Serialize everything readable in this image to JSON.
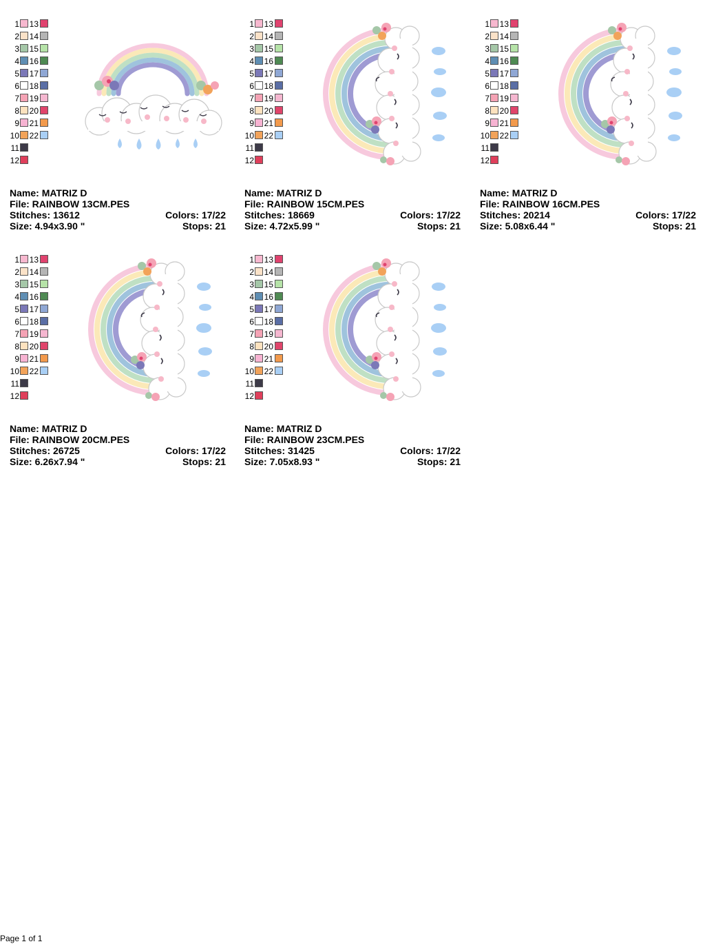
{
  "labels": {
    "name": "Name:",
    "file": "File:",
    "stitches": "Stitches:",
    "colors": "Colors:",
    "size": "Size:",
    "stops": "Stops:"
  },
  "palette_a": {
    "left": [
      "1",
      "2",
      "3",
      "4",
      "5",
      "6",
      "7",
      "8",
      "9",
      "10",
      "11",
      "12"
    ],
    "right": [
      "13",
      "14",
      "15",
      "16",
      "17",
      "18",
      "19",
      "20",
      "21",
      "22"
    ]
  },
  "colors_a": {
    "left": [
      "#f7b8cf",
      "#fbe2c8",
      "#a5c7a8",
      "#5f8eb3",
      "#7b78b7",
      "#ffffff",
      "#f5a3b5",
      "#fde2bf",
      "#f7b3d2",
      "#f2a35a",
      "#3d3a48",
      "#df3f5b"
    ],
    "right": [
      "#e0436f",
      "#b5b5b5",
      "#b6e3a8",
      "#4f8a53",
      "#8fa7d4",
      "#5a6ea5",
      "#f5b7d0",
      "#e0456b",
      "#f29a4c",
      "#a9cff5"
    ]
  },
  "colors_b": {
    "left": [
      "#f7b8cf",
      "#fbe2c8",
      "#a5c7a8",
      "#5f8eb3",
      "#7b78b7",
      "#ffffff",
      "#f5a3b5",
      "#fde2bf",
      "#f7b3d2",
      "#f2a35a",
      "#3d3a48",
      "#df3f5b"
    ],
    "right": [
      "#e0436f",
      "#b5b5b5",
      "#b6e3a8",
      "#4f8a53",
      "#8fa7d4",
      "#5a6ea5",
      "#f5b7d0",
      "#e0456b",
      "#f29a4c",
      "#a9cff5"
    ]
  },
  "designs": [
    {
      "name": "MATRIZ D",
      "file": "RAINBOW 13CM.PES",
      "stitches": "13612",
      "colors": "17/22",
      "size": "4.94x3.90 \"",
      "stops": "21"
    },
    {
      "name": "MATRIZ D",
      "file": "RAINBOW 15CM.PES",
      "stitches": "18669",
      "colors": "17/22",
      "size": "4.72x5.99 \"",
      "stops": "21"
    },
    {
      "name": "MATRIZ D",
      "file": "RAINBOW 16CM.PES",
      "stitches": "20214",
      "colors": "17/22",
      "size": "5.08x6.44 \"",
      "stops": "21"
    },
    {
      "name": "MATRIZ D",
      "file": "RAINBOW 20CM.PES",
      "stitches": "26725",
      "colors": "17/22",
      "size": "6.26x7.94 \"",
      "stops": "21"
    },
    {
      "name": "MATRIZ D",
      "file": "RAINBOW 23CM.PES",
      "stitches": "31425",
      "colors": "17/22",
      "size": "7.05x8.93 \"",
      "stops": "21"
    }
  ],
  "footer": "Page 1 of 1"
}
